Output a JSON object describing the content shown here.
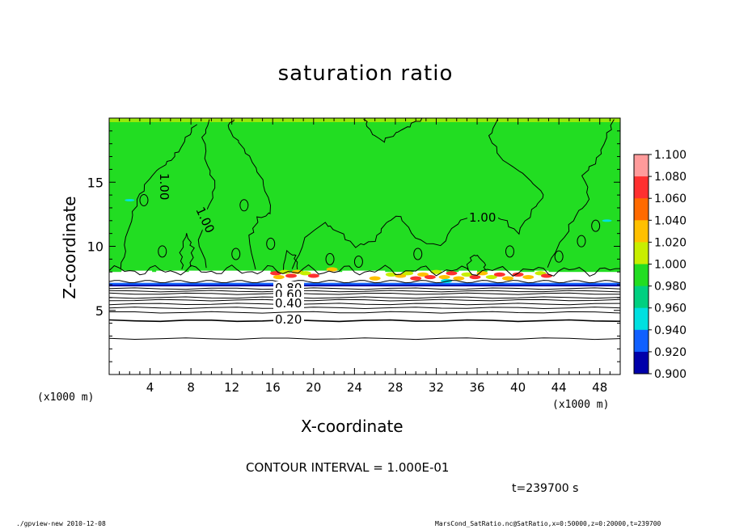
{
  "chart_data": {
    "type": "heatmap",
    "title": "saturation ratio",
    "xlabel": "X-coordinate",
    "ylabel": "Z-coordinate",
    "x_unit_label": "(x1000 m)",
    "xlim": [
      0,
      50
    ],
    "ylim": [
      0,
      20
    ],
    "x_ticks": [
      "4",
      "8",
      "12",
      "16",
      "20",
      "24",
      "28",
      "32",
      "36",
      "40",
      "44",
      "48"
    ],
    "y_ticks": [
      "5",
      "10",
      "15"
    ],
    "colorbar": {
      "levels": [
        "1.100",
        "1.080",
        "1.060",
        "1.040",
        "1.020",
        "1.000",
        "0.980",
        "0.960",
        "0.940",
        "0.920",
        "0.900"
      ],
      "colors": [
        "#ff9b9b",
        "#ff3030",
        "#ff6a00",
        "#ffc000",
        "#c8ee00",
        "#22dd22",
        "#00d080",
        "#00e0e0",
        "#1060ff",
        "#0000aa",
        "#5000a0"
      ]
    },
    "contour_labels": [
      "1.00",
      "1.00",
      "1.00",
      "0.80",
      "0.60",
      "0.40",
      "0.20"
    ],
    "bands": [
      {
        "region": "z 8.0-20 km",
        "value_range": "~1.00",
        "color": "#22dd22"
      },
      {
        "region": "z 7.0-8.0 km",
        "value_range": "1.00-1.10 (cloud layer)",
        "color": "mixed"
      },
      {
        "region": "z 0-7.0 km",
        "value_range": "<0.90",
        "color": "#ffffff"
      }
    ],
    "contour_interval": "CONTOUR INTERVAL = 1.000E-01",
    "time": "t=239700 s"
  },
  "footer": {
    "left": "./gpview-new  2010-12-08",
    "right": "MarsCond_SatRatio.nc@SatRatio,x=0:50000,z=0:20000,t=239700"
  }
}
